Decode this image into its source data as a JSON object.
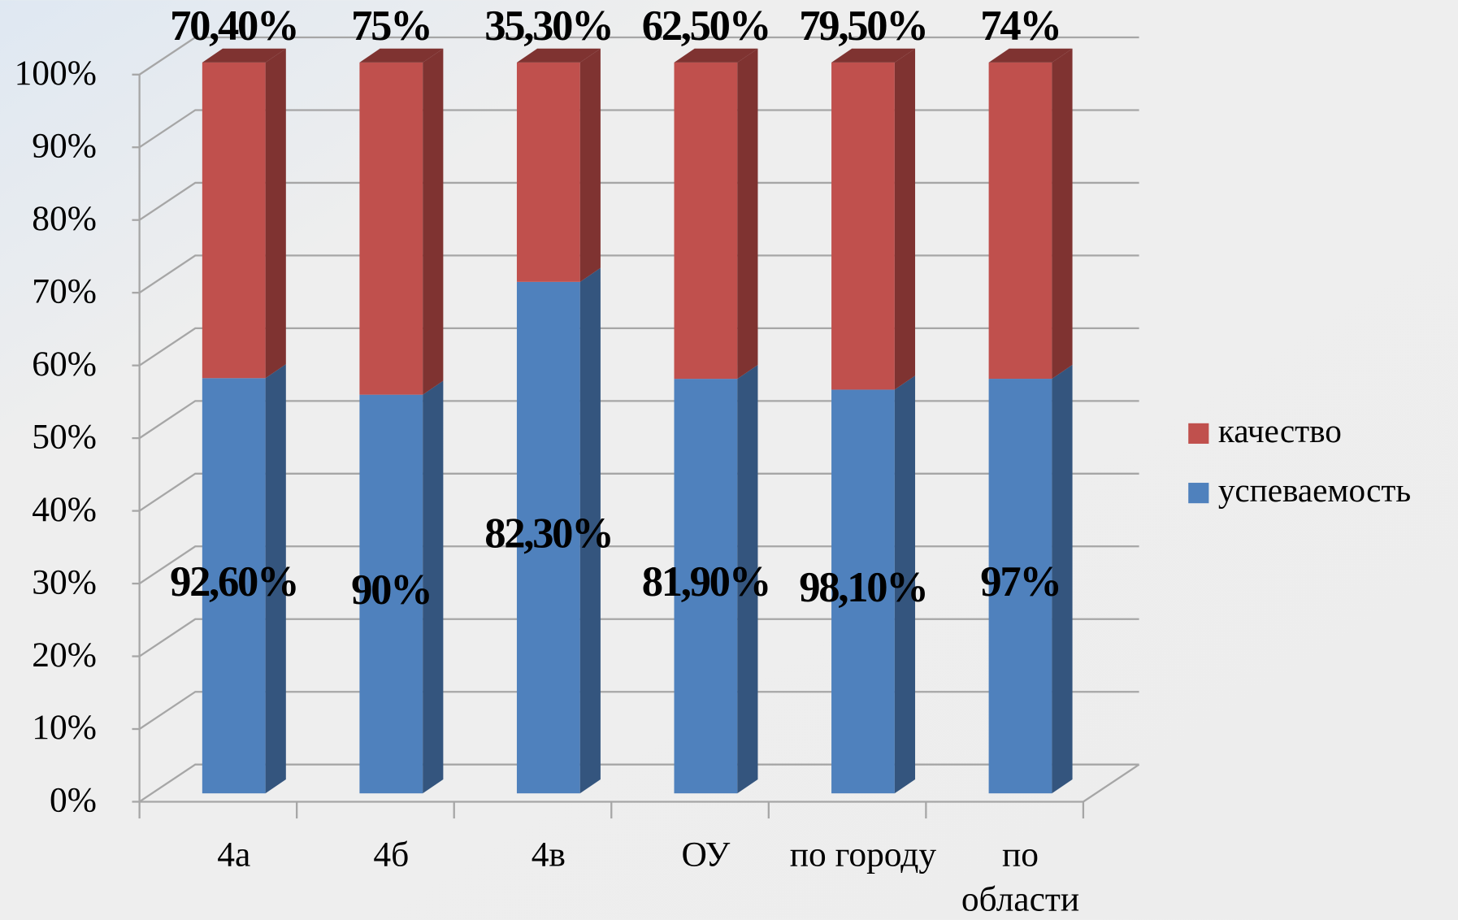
{
  "chart_data": {
    "type": "bar",
    "stacking": "percent",
    "categories": [
      "4а",
      "4б",
      "4в",
      "ОУ",
      "по городу",
      "по области"
    ],
    "series": [
      {
        "name": "успеваемость",
        "color": "#4f81bd",
        "side_color": "#34557e",
        "values": [
          92.6,
          90,
          82.3,
          81.9,
          98.1,
          97
        ],
        "value_labels": [
          "92,60%",
          "90%",
          "82,30%",
          "81,90%",
          "98,10%",
          "97%"
        ]
      },
      {
        "name": "качество",
        "color": "#c0504d",
        "side_color": "#7f3331",
        "values": [
          70.4,
          75,
          35.3,
          62.5,
          79.5,
          74
        ],
        "value_labels": [
          "70,40%",
          "75%",
          "35,30%",
          "62,50%",
          "79,50%",
          "74%"
        ]
      }
    ],
    "ylim": [
      0,
      100
    ],
    "yticks": [
      {
        "value": 0,
        "label": "0%"
      },
      {
        "value": 10,
        "label": "10%"
      },
      {
        "value": 20,
        "label": "20%"
      },
      {
        "value": 30,
        "label": "30%"
      },
      {
        "value": 40,
        "label": "40%"
      },
      {
        "value": 50,
        "label": "50%"
      },
      {
        "value": 60,
        "label": "60%"
      },
      {
        "value": 70,
        "label": "70%"
      },
      {
        "value": 80,
        "label": "80%"
      },
      {
        "value": 90,
        "label": "90%"
      },
      {
        "value": 100,
        "label": "100%"
      }
    ],
    "grid": true,
    "legend": "right"
  }
}
